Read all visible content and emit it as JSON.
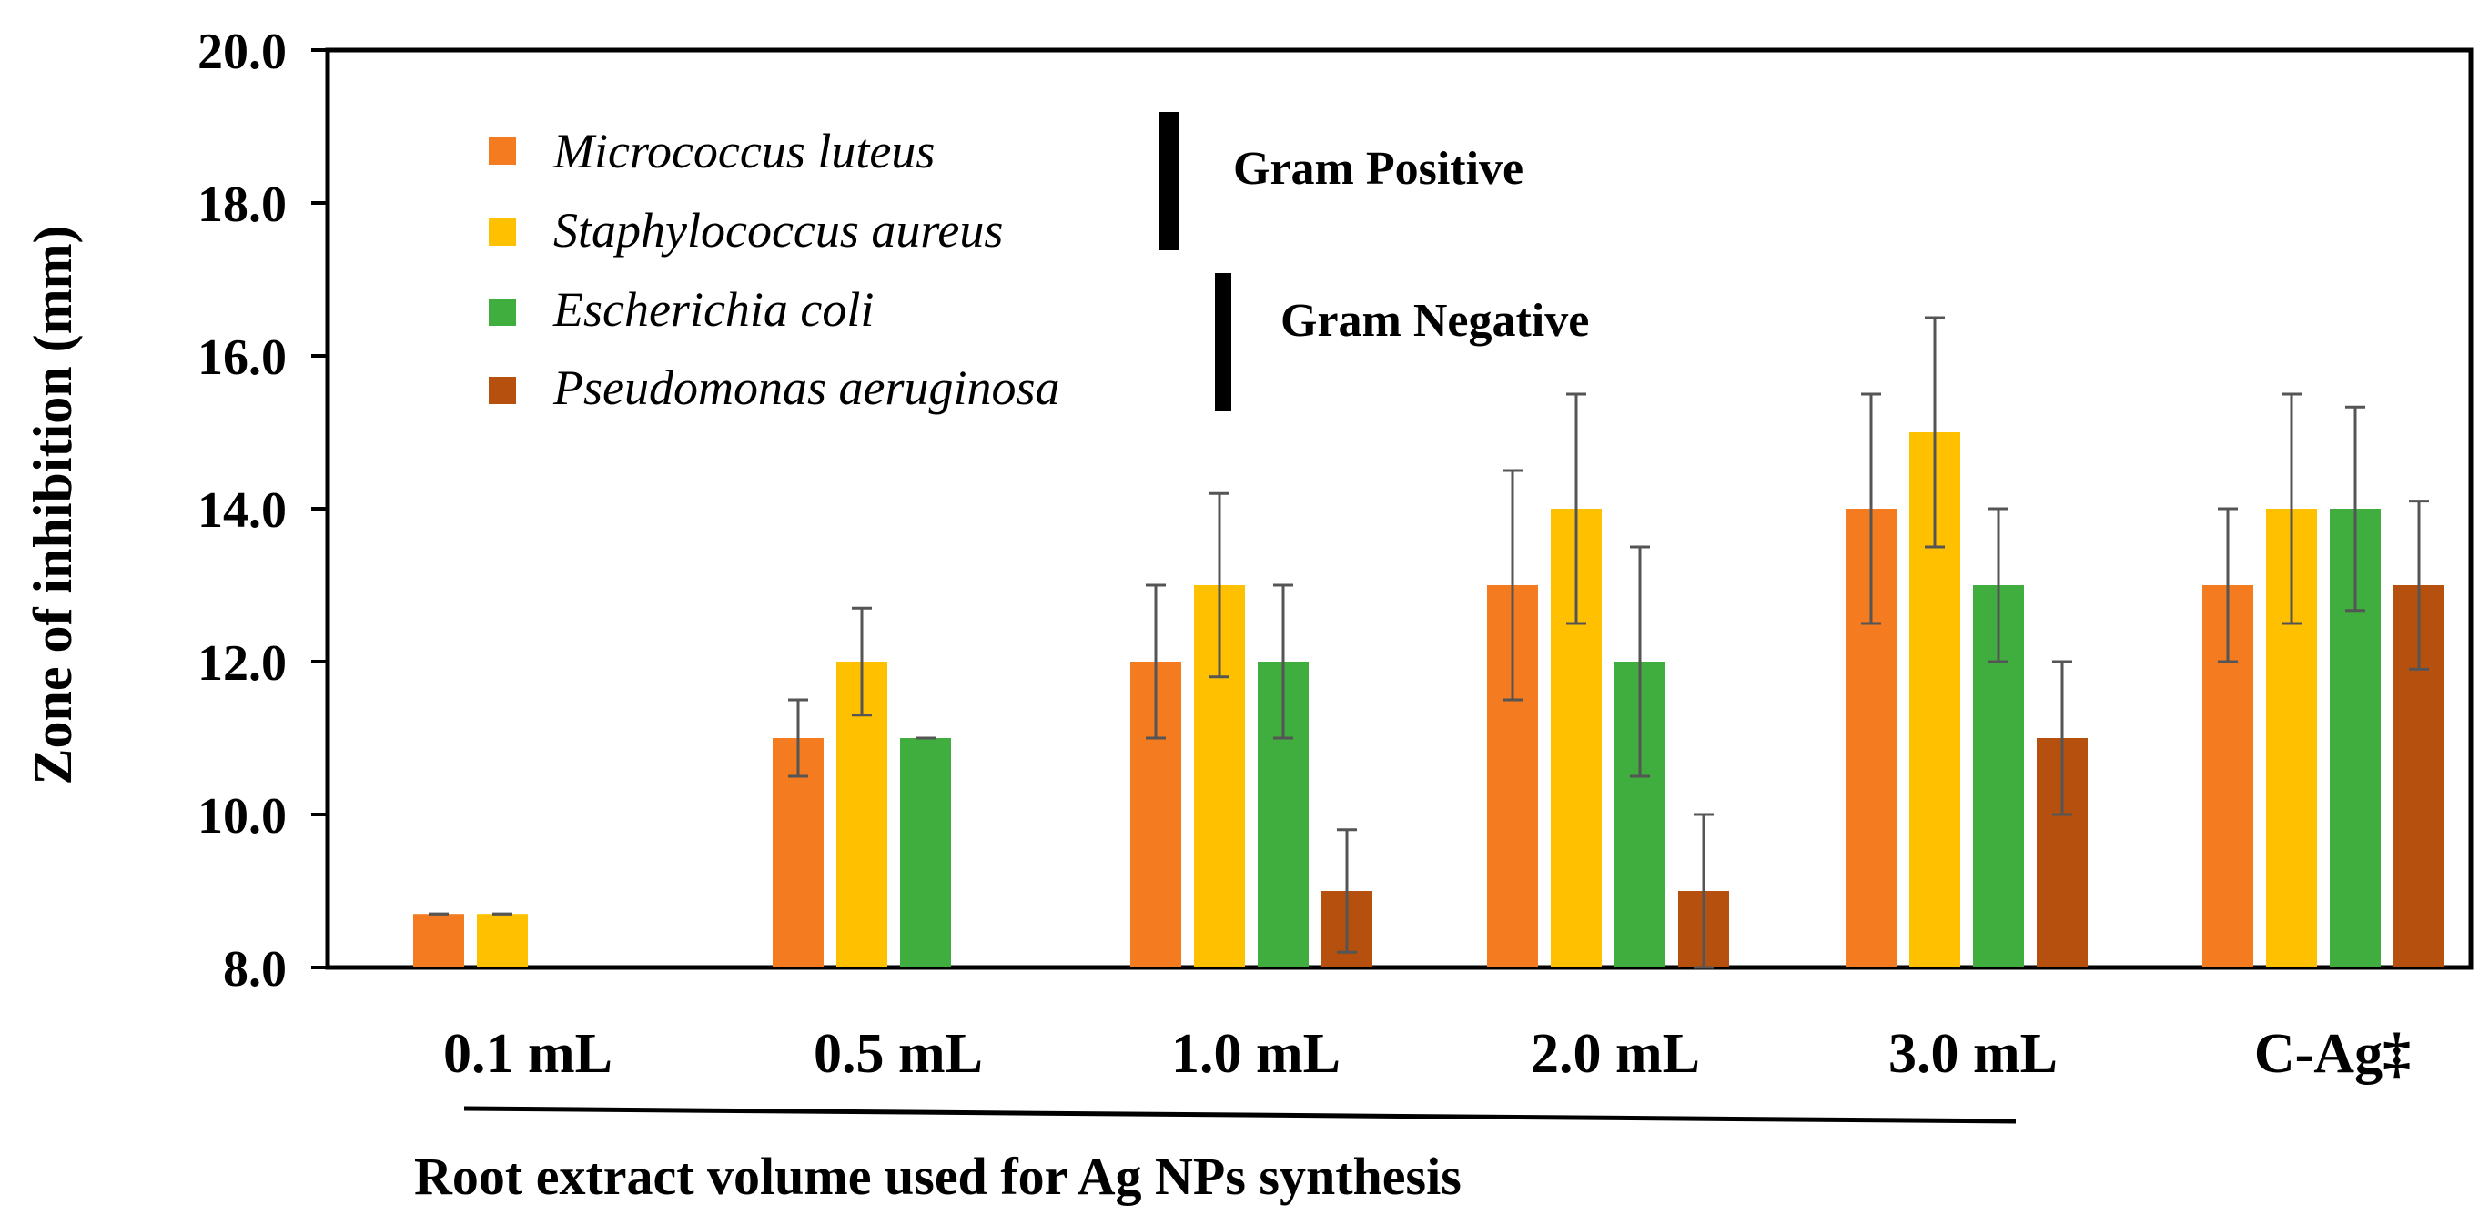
{
  "chart_data": {
    "type": "bar",
    "title": "",
    "xlabel": "Root extract volume used for Ag NPs synthesis",
    "ylabel": "Zone of inhibition (mm)",
    "ylim": [
      8.0,
      20.0
    ],
    "yticks": [
      "8.0",
      "10.0",
      "12.0",
      "14.0",
      "16.0",
      "18.0",
      "20.0"
    ],
    "categories": [
      "0.1 mL",
      "0.5 mL",
      "1.0 mL",
      "2.0 mL",
      "3.0 mL",
      "C-Ag‡"
    ],
    "series": [
      {
        "name": "Micrococcus luteus",
        "color": "#F47B20",
        "values": [
          8.7,
          11.0,
          12.0,
          13.0,
          14.0,
          13.0
        ],
        "errors": [
          0.0,
          0.5,
          1.0,
          1.5,
          1.5,
          1.0
        ]
      },
      {
        "name": "Staphylococcus aureus",
        "color": "#FFC000",
        "values": [
          8.7,
          12.0,
          13.0,
          14.0,
          15.0,
          14.0
        ],
        "errors": [
          0.0,
          0.7,
          1.2,
          1.5,
          1.5,
          1.5
        ]
      },
      {
        "name": "Escherichia coli",
        "color": "#3FAE3F",
        "values": [
          null,
          11.0,
          12.0,
          12.0,
          13.0,
          14.0
        ],
        "errors": [
          null,
          0.0,
          1.0,
          1.5,
          1.0,
          1.33
        ]
      },
      {
        "name": "Pseudomonas aeruginosa",
        "color": "#B5500E",
        "values": [
          null,
          null,
          9.0,
          9.0,
          11.0,
          13.0
        ],
        "errors": [
          null,
          null,
          0.8,
          1.0,
          1.0,
          1.1
        ]
      }
    ],
    "legend_groups": [
      {
        "label": "Gram Positive",
        "members": [
          "Micrococcus luteus",
          "Staphylococcus aureus"
        ]
      },
      {
        "label": "Gram Negative",
        "members": [
          "Escherichia coli",
          "Pseudomonas aeruginosa"
        ]
      }
    ],
    "legend_position": "top-left",
    "grid": false
  }
}
